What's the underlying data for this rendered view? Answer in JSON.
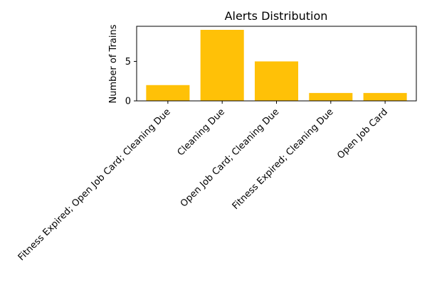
{
  "chart_data": {
    "type": "bar",
    "title": "Alerts Distribution",
    "xlabel": "",
    "ylabel": "Number of Trains",
    "categories": [
      "Fitness Expired; Open Job Card; Cleaning Due",
      "Cleaning Due",
      "Open Job Card; Cleaning Due",
      "Fitness Expired; Cleaning Due",
      "Open Job Card"
    ],
    "values": [
      2,
      9,
      5,
      1,
      1
    ],
    "ylim": [
      0,
      9.45
    ],
    "yticks": [
      0,
      5
    ],
    "grid": false,
    "legend": "none",
    "bar_color": "#ffc107"
  }
}
